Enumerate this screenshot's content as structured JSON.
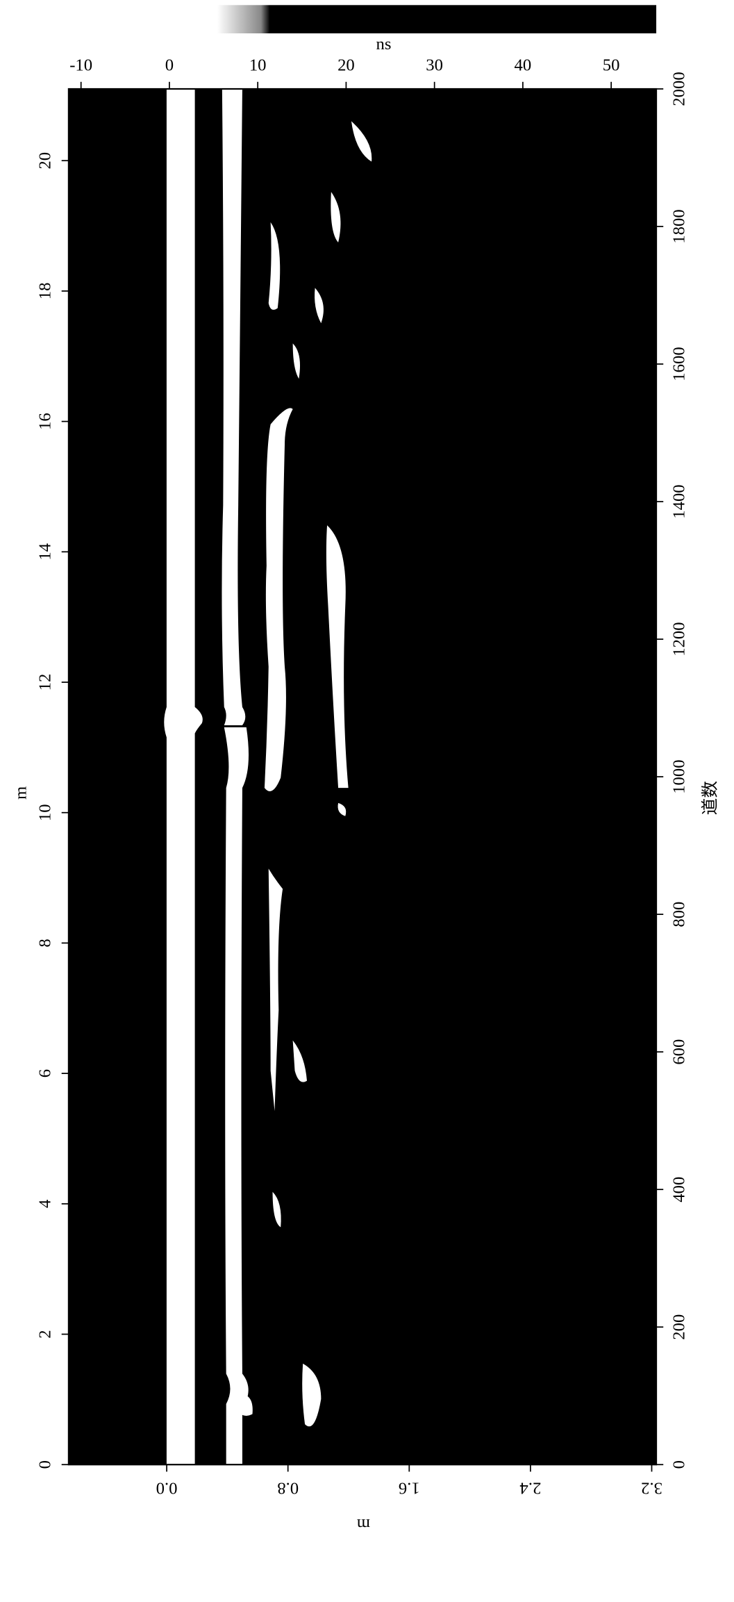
{
  "chart_data": {
    "type": "radargram",
    "background": "#000000",
    "reflection_color": "#ffffff",
    "xlabel": "ns",
    "xlim": [
      -11.4,
      55.1
    ],
    "xticks": [
      -10,
      0,
      10,
      20,
      30,
      40,
      50
    ],
    "x2label": "m",
    "x2lim": [
      -0.647,
      3.23
    ],
    "x2ticks": [
      {
        "value": 0,
        "label": "0.0"
      },
      0.8,
      1.6,
      2.4,
      3.2
    ],
    "ylabel": "m",
    "ylim": [
      0,
      21.1
    ],
    "yticks": [
      0,
      2,
      4,
      6,
      8,
      10,
      12,
      14,
      16,
      18,
      20
    ],
    "y2label": "道数",
    "y2lim": [
      0,
      2000
    ],
    "y2ticks": [
      0,
      200,
      400,
      600,
      800,
      1000,
      1200,
      1400,
      1600,
      1800,
      2000
    ]
  }
}
